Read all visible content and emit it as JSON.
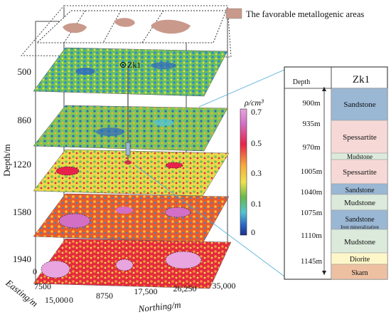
{
  "legend": {
    "favorable_label": "The favorable metallogenic areas",
    "favorable_color": "#c9998b"
  },
  "axes": {
    "depth_title": "Depth/m",
    "depth_ticks": [
      "500",
      "860",
      "1220",
      "1580",
      "1940"
    ],
    "easting_title": "Easting/m",
    "easting_ticks": [
      "0",
      "7500",
      "15,000"
    ],
    "northing_title": "Northing/m",
    "northing_ticks": [
      "0",
      "8750",
      "17,500",
      "26,250",
      "35,000"
    ]
  },
  "drillhole_label": "Zk1",
  "colorbar": {
    "title": "ρ/cm³",
    "ticks": [
      "0.7",
      "0.5",
      "0.3",
      "0.1",
      "0"
    ],
    "colors": [
      "#d36fc4",
      "#e8224a",
      "#f7ac3a",
      "#efe24e",
      "#67b84b",
      "#54c3d1",
      "#2b67c6",
      "#1c2f8c"
    ]
  },
  "column": {
    "title": "Zk1",
    "depth_header": "Depth",
    "depths": [
      "900m",
      "935m",
      "970m",
      "1005m",
      "1040m",
      "1075m",
      "1110m",
      "1145m"
    ],
    "layers": [
      {
        "name": "Sandstone",
        "color": "#9ab7d4"
      },
      {
        "name": "Spessartite",
        "color": "#f6d9d6"
      },
      {
        "name": "Mudstone",
        "color": "#dbeadb"
      },
      {
        "name": "Spessartite",
        "color": "#f6d9d6"
      },
      {
        "name": "Sandstone",
        "color": "#9ab7d4"
      },
      {
        "name": "Mudstone",
        "color": "#dbeadb"
      },
      {
        "name": "Sandstone",
        "color": "#9ab7d4"
      },
      {
        "name": "Mudstone",
        "color": "#dbeadb"
      },
      {
        "name": "Diorite",
        "color": "#fdf6c8"
      },
      {
        "name": "Skarn",
        "color": "#eec0a2"
      }
    ],
    "note": "Iron mineralization"
  }
}
